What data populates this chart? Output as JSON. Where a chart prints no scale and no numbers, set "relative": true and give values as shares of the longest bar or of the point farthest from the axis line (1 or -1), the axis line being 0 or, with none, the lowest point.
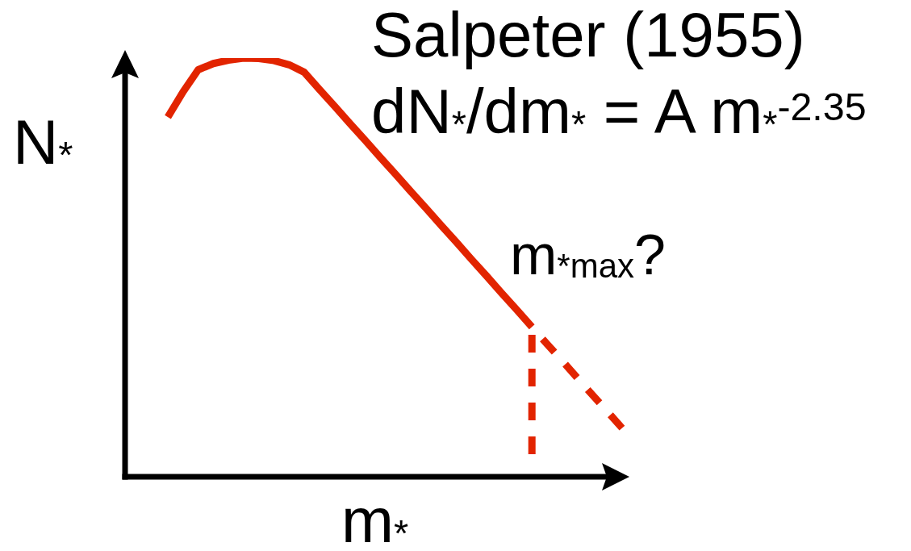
{
  "chart_data": {
    "type": "line",
    "title": "Salpeter (1955)",
    "subtitle": "dN$_{*}$/dm$_{*}$ = A m$_{*}$$^{-2.35}$",
    "xlabel": "m$_{*}$",
    "ylabel": "N$_{*}$",
    "annotations": [
      "m$_{*max}$?"
    ],
    "categories": [
      null,
      null,
      null,
      null,
      null,
      null,
      null,
      null,
      null,
      null,
      null,
      null,
      null,
      null,
      null,
      null,
      null,
      null,
      null,
      null,
      null,
      null,
      null,
      null,
      null,
      null,
      null,
      null,
      null,
      null,
      null
    ],
    "relative": true,
    "line_style": "solid",
    "series": [
      {
        "color": "#e22400",
        "values": [
          0.859,
          0.919,
          0.972,
          0.987,
          0.995,
          1,
          0.999,
          0.994,
          0.984,
          0.966,
          0.925,
          0.885,
          0.844,
          0.804,
          0.763,
          0.723,
          0.682,
          0.642,
          0.601,
          0.561,
          0.52,
          0.48,
          0.439,
          0.399,
          0.358,
          null,
          null,
          null,
          null,
          null,
          null
        ]
      },
      {
        "color": "#e22400",
        "line_style": "dashed",
        "values": [
          null,
          null,
          null,
          null,
          null,
          null,
          null,
          null,
          null,
          null,
          null,
          null,
          null,
          null,
          null,
          null,
          null,
          null,
          null,
          null,
          null,
          null,
          null,
          null,
          0.358,
          0.317,
          0.277,
          0.236,
          0.195,
          0.155,
          0.114
        ]
      }
    ]
  }
}
